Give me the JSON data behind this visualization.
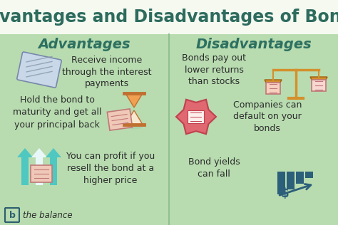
{
  "title": "Advantages and Disadvantages of Bonds",
  "title_fontsize": 17,
  "title_color": "#2d6b5e",
  "title_bg_color": "#f5f9f0",
  "left_header": "Advantages",
  "right_header": "Disadvantages",
  "header_fontsize": 14,
  "header_color": "#2d7060",
  "panel_bg_color": "#b8dcb0",
  "text_color": "#2c2c2c",
  "body_fontsize": 9.0,
  "advantages": [
    "Receive income\nthrough the interest\npayments",
    "Hold the bond to\nmaturity and get all\nyour principal back",
    "You can profit if you\nresell the bond at a\nhigher price"
  ],
  "disadvantages": [
    "Bonds pay out\nlower returns\nthan stocks",
    "Companies can\ndefault on your\nbonds",
    "Bond yields\ncan fall"
  ],
  "logo_text": "the balance",
  "logo_fontsize": 8.5,
  "divider_color": "#90c090",
  "check_color": "#c8d8e8",
  "check_line_color": "#8899aa",
  "hourglass_top_color": "#f0a050",
  "hourglass_bot_color": "#f8d090",
  "hourglass_edge_color": "#c07030",
  "arrow_teal": "#4ec8c0",
  "arrow_white": "#e8f8f8",
  "scales_color": "#d4902c",
  "crumple_color": "#e06060",
  "bar_color": "#2c5f7a",
  "doc_pink": "#f0c8b8",
  "doc_edge": "#c07878"
}
